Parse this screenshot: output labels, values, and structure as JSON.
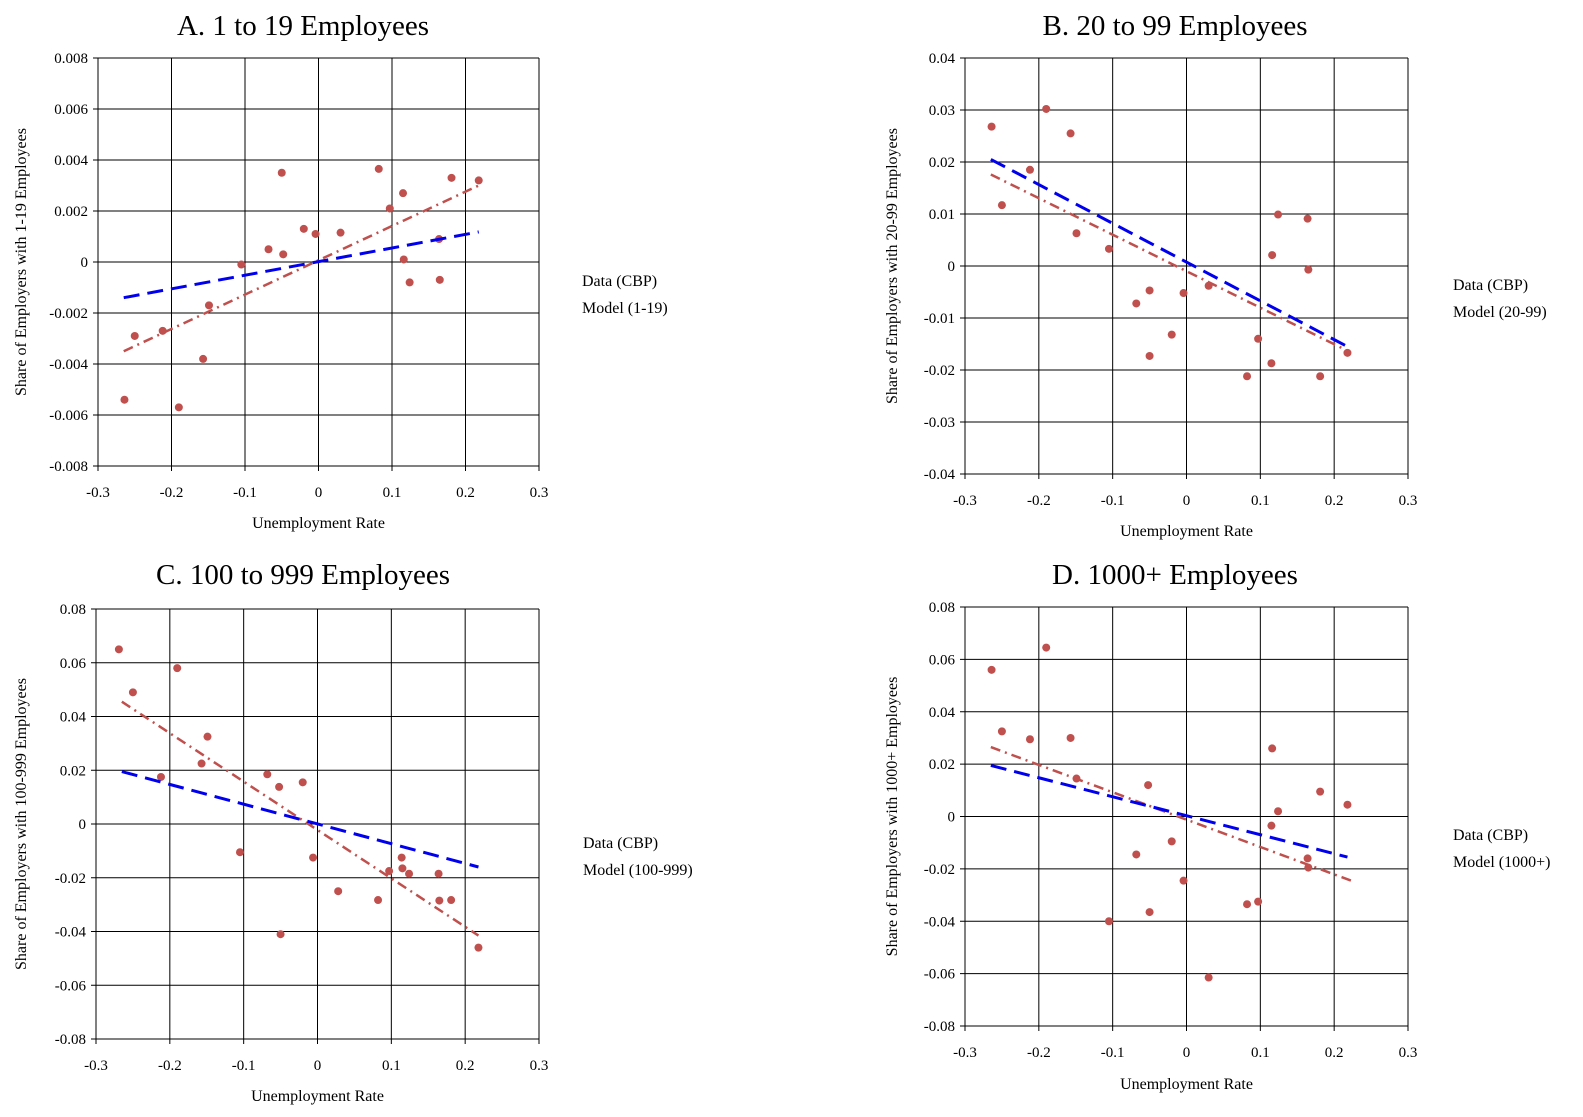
{
  "chart_data": [
    {
      "type": "scatter",
      "title": "A.  1 to 19 Employees",
      "xlabel": "Unemployment Rate",
      "ylabel": "Share of Employers with 1-19 Employees",
      "xlim": [
        -0.3,
        0.3
      ],
      "ylim": [
        -0.008,
        0.008
      ],
      "xticks": [
        "-0.3",
        "-0.2",
        "-0.1",
        "0",
        "0.1",
        "0.2",
        "0.3"
      ],
      "yticks": [
        "0.008",
        "0.006",
        "0.004",
        "0.002",
        "0",
        "-0.002",
        "-0.004",
        "-0.006",
        "-0.008"
      ],
      "grid": true,
      "legend_position": "right",
      "series": [
        {
          "name": "Data (CBP)",
          "kind": "points",
          "color": "#c0504d",
          "x": [
            -0.264,
            -0.25,
            -0.212,
            -0.19,
            -0.157,
            -0.149,
            -0.105,
            -0.068,
            -0.05,
            -0.048,
            -0.02,
            -0.004,
            0.03,
            0.082,
            0.097,
            0.115,
            0.116,
            0.124,
            0.164,
            0.165,
            0.181,
            0.218
          ],
          "y": [
            -0.0054,
            -0.0029,
            -0.0027,
            -0.0057,
            -0.0038,
            -0.0017,
            -0.0001,
            0.0005,
            0.0035,
            0.0003,
            0.0013,
            0.0011,
            0.00115,
            0.00365,
            0.0021,
            0.0027,
            0.0001,
            -0.0008,
            0.0009,
            -0.0007,
            0.0033,
            0.0032
          ]
        },
        {
          "name": "",
          "kind": "trend",
          "color": "#c0504d",
          "x": [
            -0.265,
            0.218
          ],
          "y": [
            -0.0035,
            0.003
          ]
        },
        {
          "name": "Model (1-19)",
          "kind": "line",
          "color": "#0000ee",
          "x": [
            -0.265,
            0.218
          ],
          "y": [
            -0.0014,
            0.00118
          ]
        }
      ]
    },
    {
      "type": "scatter",
      "title": "B.  20 to 99 Employees",
      "xlabel": "Unemployment Rate",
      "ylabel": "Share of Employers with 20-99 Employees",
      "xlim": [
        -0.3,
        0.3
      ],
      "ylim": [
        -0.04,
        0.04
      ],
      "xticks": [
        "-0.3",
        "-0.2",
        "-0.1",
        "0",
        "0.1",
        "0.2",
        "0.3"
      ],
      "yticks": [
        "0.04",
        "0.03",
        "0.02",
        "0.01",
        "0",
        "-0.01",
        "-0.02",
        "-0.03",
        "-0.04"
      ],
      "grid": true,
      "legend_position": "right",
      "series": [
        {
          "name": "Data (CBP)",
          "kind": "points",
          "color": "#c0504d",
          "x": [
            -0.264,
            -0.25,
            -0.212,
            -0.19,
            -0.157,
            -0.149,
            -0.105,
            -0.068,
            -0.05,
            -0.05,
            -0.02,
            -0.004,
            0.03,
            0.082,
            0.097,
            0.115,
            0.116,
            0.124,
            0.164,
            0.165,
            0.181,
            0.218
          ],
          "y": [
            0.0268,
            0.0117,
            0.0185,
            0.0302,
            0.0255,
            0.0063,
            0.0033,
            -0.0072,
            -0.0047,
            -0.0173,
            -0.0132,
            -0.0052,
            -0.0038,
            -0.0212,
            -0.014,
            -0.0187,
            0.0021,
            0.0099,
            0.0091,
            -0.0007,
            -0.0212,
            -0.0167
          ]
        },
        {
          "name": "",
          "kind": "trend",
          "color": "#c0504d",
          "x": [
            -0.265,
            0.218
          ],
          "y": [
            0.0176,
            -0.0163
          ]
        },
        {
          "name": "Model (20-99)",
          "kind": "line",
          "color": "#0000ee",
          "x": [
            -0.265,
            0.218
          ],
          "y": [
            0.0205,
            -0.0155
          ]
        }
      ]
    },
    {
      "type": "scatter",
      "title": "C.  100 to 999 Employees",
      "xlabel": "Unemployment Rate",
      "ylabel": "Share of Employers with 100-999 Employees",
      "xlim": [
        -0.3,
        0.3
      ],
      "ylim": [
        -0.08,
        0.08
      ],
      "xticks": [
        "-0.3",
        "-0.2",
        "-0.1",
        "0",
        "0.1",
        "0.2",
        "0.3"
      ],
      "yticks": [
        "0.08",
        "0.06",
        "0.04",
        "0.02",
        "0",
        "-0.02",
        "-0.04",
        "-0.06",
        "-0.08"
      ],
      "grid": true,
      "legend_position": "right",
      "series": [
        {
          "name": "Data (CBP)",
          "kind": "points",
          "color": "#c0504d",
          "x": [
            -0.269,
            -0.25,
            -0.212,
            -0.19,
            -0.157,
            -0.149,
            -0.105,
            -0.068,
            -0.052,
            -0.05,
            -0.02,
            -0.006,
            0.028,
            0.082,
            0.097,
            0.114,
            0.115,
            0.124,
            0.164,
            0.165,
            0.181,
            0.218
          ],
          "y": [
            0.065,
            0.049,
            0.0175,
            0.058,
            0.0225,
            0.0325,
            -0.0105,
            0.0185,
            0.0138,
            -0.041,
            0.0155,
            -0.0125,
            -0.025,
            -0.0283,
            -0.0175,
            -0.0125,
            -0.0165,
            -0.0185,
            -0.0185,
            -0.0285,
            -0.0283,
            -0.046
          ]
        },
        {
          "name": "",
          "kind": "trend",
          "color": "#c0504d",
          "x": [
            -0.265,
            0.218
          ],
          "y": [
            0.0455,
            -0.0415
          ]
        },
        {
          "name": "Model (100-999)",
          "kind": "line",
          "color": "#0000ee",
          "x": [
            -0.265,
            0.218
          ],
          "y": [
            0.0195,
            -0.016
          ]
        }
      ]
    },
    {
      "type": "scatter",
      "title": "D.  1000+ Employees",
      "xlabel": "Unemployment Rate",
      "ylabel": "Share of Employers with 1000+ Employees",
      "xlim": [
        -0.3,
        0.3
      ],
      "ylim": [
        -0.08,
        0.08
      ],
      "xticks": [
        "-0.3",
        "-0.2",
        "-0.1",
        "0",
        "0.1",
        "0.2",
        "0.3"
      ],
      "yticks": [
        "0.08",
        "0.06",
        "0.04",
        "0.02",
        "0",
        "-0.02",
        "-0.04",
        "-0.06",
        "-0.08"
      ],
      "grid": true,
      "legend_position": "right",
      "series": [
        {
          "name": "Data (CBP)",
          "kind": "points",
          "color": "#c0504d",
          "x": [
            -0.264,
            -0.25,
            -0.212,
            -0.19,
            -0.157,
            -0.149,
            -0.105,
            -0.068,
            -0.052,
            -0.05,
            -0.02,
            -0.004,
            0.03,
            0.082,
            0.097,
            0.115,
            0.116,
            0.124,
            0.164,
            0.165,
            0.181,
            0.218
          ],
          "y": [
            0.056,
            0.0325,
            0.0295,
            0.0645,
            0.03,
            0.0145,
            -0.04,
            -0.0145,
            0.012,
            -0.0365,
            -0.0095,
            -0.0245,
            -0.0615,
            -0.0335,
            -0.0325,
            -0.0035,
            0.026,
            0.002,
            -0.016,
            -0.0195,
            0.0095,
            0.0045
          ]
        },
        {
          "name": "",
          "kind": "trend",
          "color": "#c0504d",
          "x": [
            -0.265,
            0.223
          ],
          "y": [
            0.0265,
            -0.0245
          ]
        },
        {
          "name": "Model (1000+)",
          "kind": "line",
          "color": "#0000ee",
          "x": [
            -0.265,
            0.218
          ],
          "y": [
            0.0195,
            -0.0155
          ]
        }
      ]
    }
  ]
}
